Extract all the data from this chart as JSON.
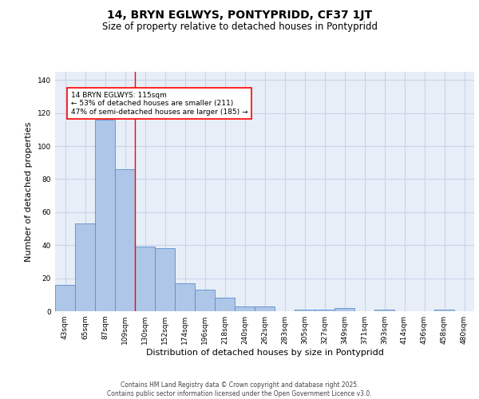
{
  "title1": "14, BRYN EGLWYS, PONTYPRIDD, CF37 1JT",
  "title2": "Size of property relative to detached houses in Pontypridd",
  "xlabel": "Distribution of detached houses by size in Pontypridd",
  "ylabel": "Number of detached properties",
  "categories": [
    "43sqm",
    "65sqm",
    "87sqm",
    "109sqm",
    "130sqm",
    "152sqm",
    "174sqm",
    "196sqm",
    "218sqm",
    "240sqm",
    "262sqm",
    "283sqm",
    "305sqm",
    "327sqm",
    "349sqm",
    "371sqm",
    "393sqm",
    "414sqm",
    "436sqm",
    "458sqm",
    "480sqm"
  ],
  "values": [
    16,
    53,
    116,
    86,
    39,
    38,
    17,
    13,
    8,
    3,
    3,
    0,
    1,
    1,
    2,
    0,
    1,
    0,
    0,
    1,
    0
  ],
  "bar_color": "#aec6e8",
  "bar_edge_color": "#5b8fc9",
  "grid_color": "#c8d4e8",
  "background_color": "#e8eef8",
  "vline_x_index": 3.5,
  "vline_color": "red",
  "annotation_text": "14 BRYN EGLWYS: 115sqm\n← 53% of detached houses are smaller (211)\n47% of semi-detached houses are larger (185) →",
  "ylim": [
    0,
    145
  ],
  "yticks": [
    0,
    20,
    40,
    60,
    80,
    100,
    120,
    140
  ],
  "footer": "Contains HM Land Registry data © Crown copyright and database right 2025.\nContains public sector information licensed under the Open Government Licence v3.0.",
  "title_fontsize": 10,
  "subtitle_fontsize": 8.5,
  "tick_fontsize": 6.5,
  "label_fontsize": 8,
  "footer_fontsize": 5.5,
  "annotation_fontsize": 6.5
}
